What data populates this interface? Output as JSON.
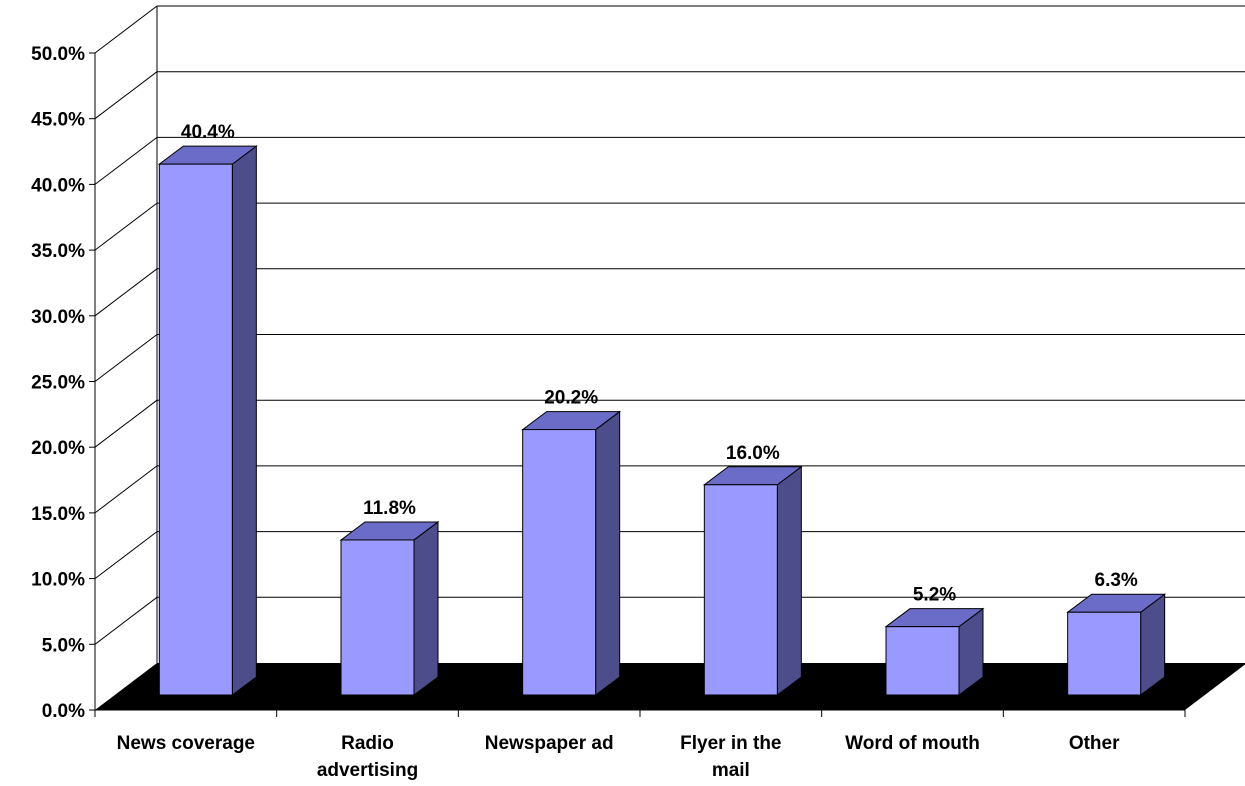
{
  "chart_data": {
    "type": "bar",
    "title": "",
    "xlabel": "",
    "ylabel": "",
    "categories": [
      [
        "News coverage"
      ],
      [
        "Radio",
        "advertising"
      ],
      [
        "Newspaper ad"
      ],
      [
        "Flyer in the",
        "mail"
      ],
      [
        "Word of mouth"
      ],
      [
        "Other"
      ]
    ],
    "values": [
      40.4,
      11.8,
      20.2,
      16.0,
      5.2,
      6.3
    ],
    "data_labels": [
      "40.4%",
      "11.8%",
      "20.2%",
      "16.0%",
      "5.2%",
      "6.3%"
    ],
    "y_ticks": [
      0,
      5,
      10,
      15,
      20,
      25,
      30,
      35,
      40,
      45,
      50
    ],
    "y_tick_labels": [
      "0.0%",
      "5.0%",
      "10.0%",
      "15.0%",
      "20.0%",
      "25.0%",
      "30.0%",
      "35.0%",
      "40.0%",
      "45.0%",
      "50.0%"
    ],
    "ylim": [
      0,
      50
    ],
    "grid": true,
    "three_d": true,
    "colors": {
      "bar_front": "#9999ff",
      "bar_side": "#4d4d8c",
      "bar_top": "#6b6bc8",
      "floor": "#000000",
      "grid": "#000000"
    }
  }
}
